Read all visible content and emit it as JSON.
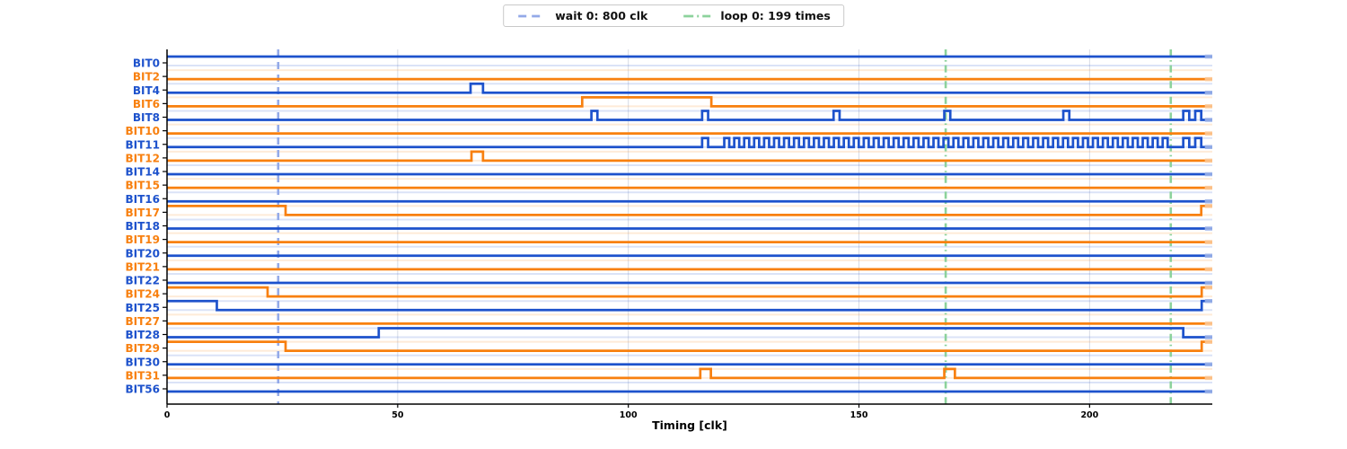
{
  "legend": {
    "items": [
      {
        "label": "wait 0: 800 clk",
        "color": "#93a9e8",
        "style": "dashed"
      },
      {
        "label": "loop 0: 199 times",
        "color": "#8cd29c",
        "style": "dashdot"
      }
    ]
  },
  "chart_data": {
    "type": "line",
    "subtype": "digital-timing-diagram",
    "title": "",
    "xlabel": "Timing [clk]",
    "ylabel": "",
    "xlim": [
      0,
      226.6
    ],
    "x_ticks": [
      0,
      50,
      100,
      150,
      200
    ],
    "grid": "vertical-light",
    "legend_position": "top-center",
    "trace_end": 225,
    "colors": {
      "blue": "#1d52cc",
      "orange": "#f8800f",
      "wait": "#93a9e8",
      "loop": "#8cd29c",
      "grid": "#d7dbe6",
      "axis": "#000000"
    },
    "markers": [
      {
        "kind": "wait",
        "x": 24.1,
        "style": "dashed",
        "color_key": "wait"
      },
      {
        "kind": "loop",
        "x": 168.8,
        "style": "dashdot",
        "color_key": "loop"
      },
      {
        "kind": "loop",
        "x": 217.6,
        "style": "dashdot",
        "color_key": "loop"
      }
    ],
    "signals": [
      {
        "name": "BIT0",
        "color": "blue",
        "initial": 1,
        "toggles": []
      },
      {
        "name": "BIT2",
        "color": "orange",
        "initial": 0,
        "toggles": []
      },
      {
        "name": "BIT4",
        "color": "blue",
        "initial": 0,
        "toggles": [
          65.8,
          68.5
        ]
      },
      {
        "name": "BIT6",
        "color": "orange",
        "initial": 0,
        "toggles": [
          90,
          118
        ]
      },
      {
        "name": "BIT8",
        "color": "blue",
        "initial": 0,
        "toggles": [
          92,
          93.3,
          116,
          117.3,
          144.5,
          145.8,
          168.5,
          169.8,
          194.3,
          195.6,
          220.3,
          221.6,
          222.9,
          224.2
        ]
      },
      {
        "name": "BIT10",
        "color": "orange",
        "initial": 0,
        "toggles": []
      },
      {
        "name": "BIT11",
        "color": "blue",
        "initial": 0,
        "toggles": [
          116,
          117.3,
          {
            "osc": {
              "start": 120.8,
              "end": 217.6,
              "half_period": 1.08
            }
          },
          220.3,
          221.6,
          222.9,
          224.2
        ]
      },
      {
        "name": "BIT12",
        "color": "orange",
        "initial": 0,
        "toggles": [
          66,
          68.5
        ]
      },
      {
        "name": "BIT14",
        "color": "blue",
        "initial": 0,
        "toggles": []
      },
      {
        "name": "BIT15",
        "color": "orange",
        "initial": 0,
        "toggles": []
      },
      {
        "name": "BIT16",
        "color": "blue",
        "initial": 0,
        "toggles": []
      },
      {
        "name": "BIT17",
        "color": "orange",
        "initial": 1,
        "toggles": [
          25.7,
          224.2
        ]
      },
      {
        "name": "BIT18",
        "color": "blue",
        "initial": 0,
        "toggles": []
      },
      {
        "name": "BIT19",
        "color": "orange",
        "initial": 0,
        "toggles": []
      },
      {
        "name": "BIT20",
        "color": "blue",
        "initial": 0,
        "toggles": []
      },
      {
        "name": "BIT21",
        "color": "orange",
        "initial": 0,
        "toggles": []
      },
      {
        "name": "BIT22",
        "color": "blue",
        "initial": 0,
        "toggles": []
      },
      {
        "name": "BIT24",
        "color": "orange",
        "initial": 1,
        "toggles": [
          21.8,
          224.3
        ]
      },
      {
        "name": "BIT25",
        "color": "blue",
        "initial": 1,
        "toggles": [
          10.8,
          224.3
        ]
      },
      {
        "name": "BIT27",
        "color": "orange",
        "initial": 0,
        "toggles": []
      },
      {
        "name": "BIT28",
        "color": "blue",
        "initial": 0,
        "toggles": [
          45.9,
          220.3
        ]
      },
      {
        "name": "BIT29",
        "color": "orange",
        "initial": 1,
        "toggles": [
          25.7,
          224.3
        ]
      },
      {
        "name": "BIT30",
        "color": "blue",
        "initial": 0,
        "toggles": []
      },
      {
        "name": "BIT31",
        "color": "orange",
        "initial": 0,
        "toggles": [
          115.6,
          117.9,
          168.5,
          170.8
        ]
      },
      {
        "name": "BIT56",
        "color": "blue",
        "initial": 0,
        "toggles": []
      }
    ]
  }
}
